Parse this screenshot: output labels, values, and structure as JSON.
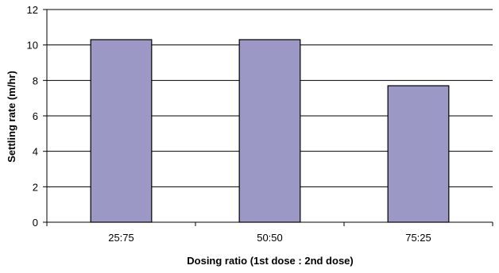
{
  "chart_data": {
    "type": "bar",
    "title": "",
    "xlabel": "Dosing ratio (1st dose : 2nd dose)",
    "ylabel": "Settling rate (m/hr)",
    "categories": [
      "25:75",
      "50:50",
      "75:25"
    ],
    "values": [
      10.3,
      10.3,
      7.7
    ],
    "ylim": [
      0,
      12
    ],
    "yticks": [
      0,
      2,
      4,
      6,
      8,
      10,
      12
    ],
    "grid": true,
    "legend": "none",
    "bar_color": "#9b98c6",
    "bar_edge_color": "#000000",
    "grid_color": "#000000"
  }
}
